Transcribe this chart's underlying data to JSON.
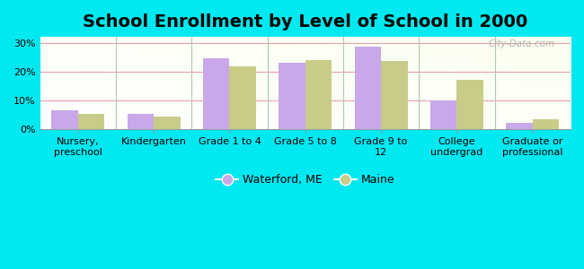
{
  "title": "School Enrollment by Level of School in 2000",
  "categories": [
    "Nursery,\npreschool",
    "Kindergarten",
    "Grade 1 to 4",
    "Grade 5 to 8",
    "Grade 9 to\n12",
    "College\nundergrad",
    "Graduate or\nprofessional"
  ],
  "waterford_values": [
    6.5,
    5.2,
    24.5,
    23.0,
    28.5,
    10.0,
    2.2
  ],
  "maine_values": [
    5.2,
    4.5,
    21.8,
    24.0,
    23.5,
    17.0,
    3.5
  ],
  "bar_color_waterford": "#c8a8e8",
  "bar_color_maine": "#c8cc88",
  "background_color": "#00e8f0",
  "ylim": [
    0,
    32
  ],
  "yticks": [
    0,
    10,
    20,
    30
  ],
  "ytick_labels": [
    "0%",
    "10%",
    "20%",
    "30%"
  ],
  "legend_waterford": "Waterford, ME",
  "legend_maine": "Maine",
  "bar_width": 0.35,
  "title_fontsize": 14,
  "tick_fontsize": 8,
  "legend_fontsize": 9,
  "watermark": "City-Data.com",
  "grid_color": "#e8a0a8",
  "separator_color": "#b0c8b0"
}
